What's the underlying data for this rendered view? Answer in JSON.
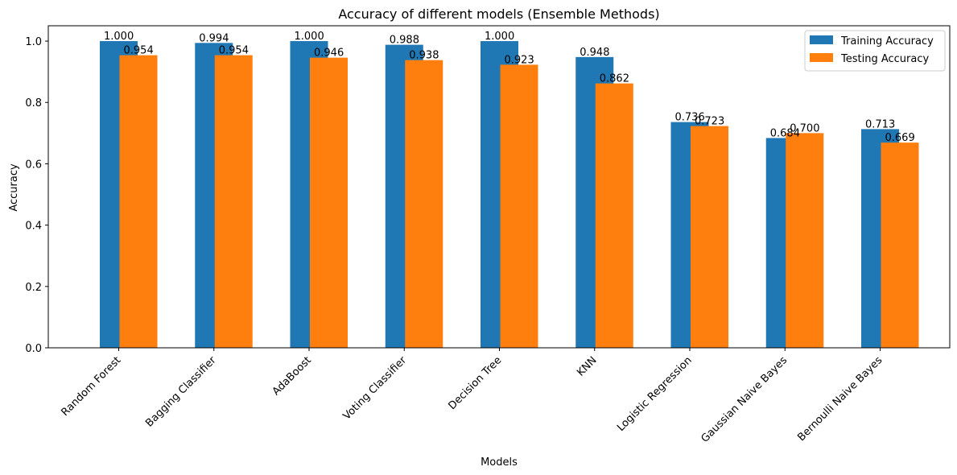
{
  "chart_data": {
    "type": "bar",
    "title": "Accuracy of different models (Ensemble Methods)",
    "xlabel": "Models",
    "ylabel": "Accuracy",
    "ylim": [
      0,
      1.05
    ],
    "yticks": [
      "0.0",
      "0.2",
      "0.4",
      "0.6",
      "0.8",
      "1.0"
    ],
    "grid": false,
    "legend_position": "top-right",
    "categories": [
      "Random Forest",
      "Bagging Classifier",
      "AdaBoost",
      "Voting Classifier",
      "Decision Tree",
      "KNN",
      "Logistic Regression",
      "Gaussian Naive Bayes",
      "Bernoulli Naive Bayes"
    ],
    "series": [
      {
        "name": "Training Accuracy",
        "color": "#1f77b4",
        "values": [
          1.0,
          0.994,
          1.0,
          0.988,
          1.0,
          0.948,
          0.736,
          0.684,
          0.713
        ],
        "labels": [
          "1.000",
          "0.994",
          "1.000",
          "0.988",
          "1.000",
          "0.948",
          "0.736",
          "0.684",
          "0.713"
        ]
      },
      {
        "name": "Testing Accuracy",
        "color": "#ff7f0e",
        "values": [
          0.954,
          0.954,
          0.946,
          0.938,
          0.923,
          0.862,
          0.723,
          0.7,
          0.669
        ],
        "labels": [
          "0.954",
          "0.954",
          "0.946",
          "0.938",
          "0.923",
          "0.862",
          "0.723",
          "0.700",
          "0.669"
        ]
      }
    ]
  }
}
